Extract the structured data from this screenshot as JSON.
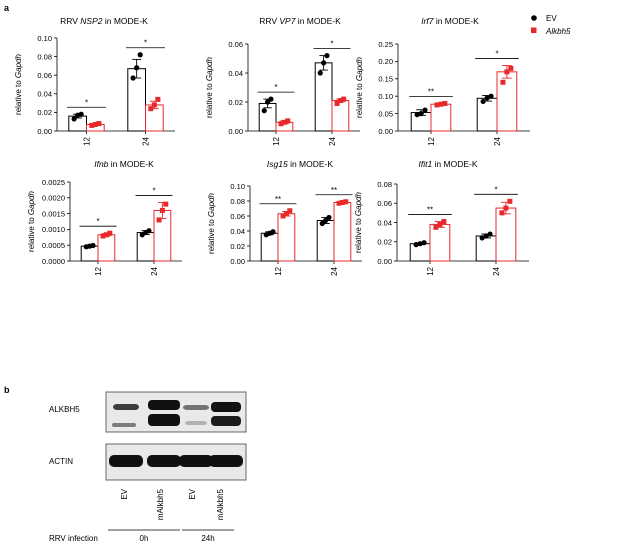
{
  "panel_labels": {
    "a": "a",
    "b": "b"
  },
  "legend": [
    {
      "name": "EV",
      "color": "#000000",
      "marker": "circle"
    },
    {
      "name": "Alkbh5",
      "color": "#e8282b",
      "marker": "square",
      "italic": true
    }
  ],
  "colors": {
    "ev": "#000000",
    "alkbh5": "#e8282b"
  },
  "chart_data": [
    {
      "type": "bar",
      "title_parts": [
        {
          "t": "RRV ",
          "i": false
        },
        {
          "t": "NSP2",
          "i": true
        },
        {
          "t": " in MODE-K",
          "i": false
        }
      ],
      "ylabel_parts": [
        {
          "t": "relative to ",
          "i": false
        },
        {
          "t": "Gapdh",
          "i": true
        }
      ],
      "categories": [
        "12",
        "24"
      ],
      "yticks": [
        "0.00",
        "0.02",
        "0.04",
        "0.06",
        "0.08",
        "0.10"
      ],
      "ylim": [
        0,
        0.1
      ],
      "series": [
        {
          "key": "EV",
          "means": [
            0.016,
            0.067
          ],
          "errors": [
            0.002,
            0.01
          ],
          "points": [
            [
              0.013,
              0.017,
              0.018
            ],
            [
              0.057,
              0.068,
              0.082
            ]
          ]
        },
        {
          "key": "Alkbh5",
          "means": [
            0.007,
            0.028
          ],
          "errors": [
            0.001,
            0.004
          ],
          "points": [
            [
              0.006,
              0.007,
              0.008
            ],
            [
              0.024,
              0.028,
              0.034
            ]
          ]
        }
      ],
      "significance": [
        "*",
        "*"
      ]
    },
    {
      "type": "bar",
      "title_parts": [
        {
          "t": "RRV ",
          "i": false
        },
        {
          "t": "VP7",
          "i": true
        },
        {
          "t": " in  MODE-K",
          "i": false
        }
      ],
      "ylabel_parts": [
        {
          "t": "relative to ",
          "i": false
        },
        {
          "t": "Gapdh",
          "i": true
        }
      ],
      "categories": [
        "12",
        "24"
      ],
      "yticks": [
        "0.00",
        "0.02",
        "0.04",
        "0.06"
      ],
      "ylim": [
        0,
        0.06
      ],
      "series": [
        {
          "key": "EV",
          "means": [
            0.019,
            0.047
          ],
          "errors": [
            0.003,
            0.005
          ],
          "points": [
            [
              0.014,
              0.02,
              0.022
            ],
            [
              0.04,
              0.047,
              0.052
            ]
          ]
        },
        {
          "key": "Alkbh5",
          "means": [
            0.006,
            0.021
          ],
          "errors": [
            0.001,
            0.001
          ],
          "points": [
            [
              0.005,
              0.006,
              0.007
            ],
            [
              0.019,
              0.021,
              0.022
            ]
          ]
        }
      ],
      "significance": [
        "*",
        "*"
      ]
    },
    {
      "type": "bar",
      "title_parts": [
        {
          "t": "Irf7",
          "i": true
        },
        {
          "t": " in MODE-K",
          "i": false
        }
      ],
      "ylabel_parts": [
        {
          "t": "relative to ",
          "i": false
        },
        {
          "t": "Gapdh",
          "i": true
        }
      ],
      "categories": [
        "12",
        "24"
      ],
      "yticks": [
        "0.00",
        "0.05",
        "0.10",
        "0.15",
        "0.20",
        "0.25"
      ],
      "ylim": [
        0,
        0.25
      ],
      "series": [
        {
          "key": "EV",
          "means": [
            0.053,
            0.094
          ],
          "errors": [
            0.008,
            0.008
          ],
          "points": [
            [
              0.047,
              0.05,
              0.06
            ],
            [
              0.085,
              0.095,
              0.1
            ]
          ]
        },
        {
          "key": "Alkbh5",
          "means": [
            0.077,
            0.17
          ],
          "errors": [
            0.002,
            0.018
          ],
          "points": [
            [
              0.075,
              0.077,
              0.079
            ],
            [
              0.14,
              0.17,
              0.18
            ]
          ]
        }
      ],
      "significance": [
        "**",
        "*"
      ]
    },
    {
      "type": "bar",
      "title_parts": [
        {
          "t": "Ifnb",
          "i": true
        },
        {
          "t": " in MODE-K",
          "i": false
        }
      ],
      "ylabel_parts": [
        {
          "t": "relative to ",
          "i": false
        },
        {
          "t": "Gapdh",
          "i": true
        }
      ],
      "categories": [
        "12",
        "24"
      ],
      "yticks": [
        "0.0000",
        "0.0005",
        "0.0010",
        "0.0015",
        "0.0020",
        "0.0025"
      ],
      "ylim": [
        0,
        0.0025
      ],
      "series": [
        {
          "key": "EV",
          "means": [
            0.00047,
            0.0009
          ],
          "errors": [
            2e-05,
            6e-05
          ],
          "points": [
            [
              0.00045,
              0.00047,
              0.00049
            ],
            [
              0.00083,
              0.0009,
              0.00096
            ]
          ]
        },
        {
          "key": "Alkbh5",
          "means": [
            0.00083,
            0.0016
          ],
          "errors": [
            4e-05,
            0.00025
          ],
          "points": [
            [
              0.00079,
              0.00083,
              0.00088
            ],
            [
              0.0013,
              0.0016,
              0.0018
            ]
          ]
        }
      ],
      "significance": [
        "*",
        "*"
      ]
    },
    {
      "type": "bar",
      "title_parts": [
        {
          "t": "Isg15",
          "i": true
        },
        {
          "t": " in  MODE-K",
          "i": false
        }
      ],
      "ylabel_parts": [
        {
          "t": "relative to ",
          "i": false
        },
        {
          "t": "Gapdh",
          "i": true
        }
      ],
      "categories": [
        "12",
        "24"
      ],
      "yticks": [
        "0.00",
        "0.02",
        "0.04",
        "0.06",
        "0.08",
        "0.10"
      ],
      "ylim": [
        0,
        0.1
      ],
      "series": [
        {
          "key": "EV",
          "means": [
            0.037,
            0.054
          ],
          "errors": [
            0.002,
            0.004
          ],
          "points": [
            [
              0.035,
              0.037,
              0.039
            ],
            [
              0.05,
              0.054,
              0.058
            ]
          ]
        },
        {
          "key": "Alkbh5",
          "means": [
            0.063,
            0.078
          ],
          "errors": [
            0.003,
            0.001
          ],
          "points": [
            [
              0.06,
              0.063,
              0.067
            ],
            [
              0.077,
              0.078,
              0.079
            ]
          ]
        }
      ],
      "significance": [
        "**",
        "**"
      ]
    },
    {
      "type": "bar",
      "title_parts": [
        {
          "t": "Ifit1",
          "i": true
        },
        {
          "t": " in MODE-K",
          "i": false
        }
      ],
      "ylabel_parts": [
        {
          "t": "relative to ",
          "i": false
        },
        {
          "t": "Gapdh",
          "i": true
        }
      ],
      "categories": [
        "12",
        "24"
      ],
      "yticks": [
        "0.00",
        "0.02",
        "0.04",
        "0.06",
        "0.08"
      ],
      "ylim": [
        0,
        0.08
      ],
      "series": [
        {
          "key": "EV",
          "means": [
            0.018,
            0.026
          ],
          "errors": [
            0.001,
            0.002
          ],
          "points": [
            [
              0.017,
              0.018,
              0.019
            ],
            [
              0.024,
              0.026,
              0.028
            ]
          ]
        },
        {
          "key": "Alkbh5",
          "means": [
            0.038,
            0.055
          ],
          "errors": [
            0.003,
            0.006
          ],
          "points": [
            [
              0.035,
              0.038,
              0.041
            ],
            [
              0.05,
              0.055,
              0.062
            ]
          ]
        }
      ],
      "significance": [
        "**",
        "*"
      ]
    }
  ],
  "blot": {
    "rows": [
      "ALKBH5",
      "ACTIN"
    ],
    "lanes": [
      "EV",
      "mAlkbh5",
      "EV",
      "mAlkbh5"
    ],
    "infection_label": "RRV infection",
    "groups": [
      "0h",
      "24h"
    ]
  }
}
